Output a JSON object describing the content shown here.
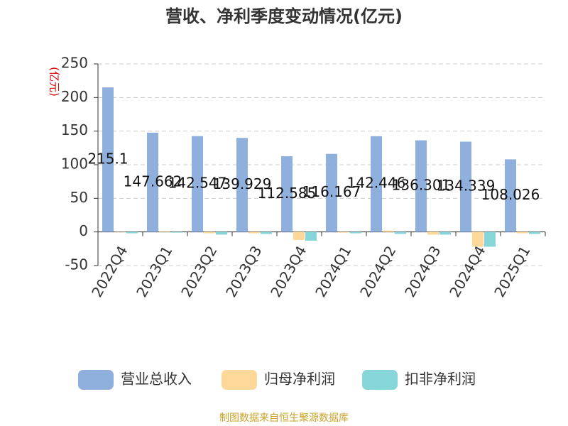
{
  "chart_data": {
    "type": "bar",
    "title": "营收、净利季度变动情况(亿元)",
    "y_label": "(亿元)",
    "source": "制图数据来自恒生聚源数据库",
    "categories": [
      "2022Q4",
      "2023Q1",
      "2023Q2",
      "2023Q3",
      "2023Q4",
      "2024Q1",
      "2024Q2",
      "2024Q3",
      "2024Q4",
      "2025Q1"
    ],
    "series": [
      {
        "name": "营业总收入",
        "color": "#8fb0dc",
        "values": [
          215.1,
          147.662,
          142.547,
          139.929,
          112.585,
          116.167,
          142.446,
          136.301,
          134.339,
          108.026
        ],
        "show_labels": true
      },
      {
        "name": "归母净利润",
        "color": "#fdd898",
        "values": [
          -0.5,
          1,
          -2,
          -2,
          -12,
          -1,
          2,
          -4,
          -22,
          -2
        ]
      },
      {
        "name": "扣非净利润",
        "color": "#86d5d8",
        "values": [
          -2,
          -1,
          -4,
          -3,
          -13,
          -2,
          -3,
          -4,
          -22,
          -3
        ]
      }
    ],
    "ylim": [
      -50,
      250
    ],
    "yticks": [
      -50,
      0,
      50,
      100,
      150,
      200,
      250
    ],
    "grid": true
  }
}
